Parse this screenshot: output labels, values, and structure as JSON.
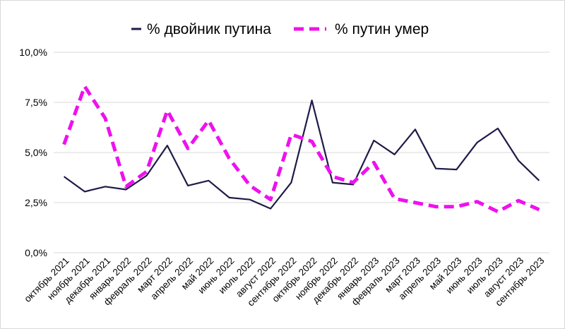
{
  "chart_data": {
    "type": "line",
    "title": "",
    "xlabel": "",
    "ylabel": "",
    "ylim": [
      0,
      10
    ],
    "y_ticks": [
      "0,0%",
      "2,5%",
      "5,0%",
      "7,5%",
      "10,0%"
    ],
    "y_tick_values": [
      0,
      2.5,
      5,
      7.5,
      10
    ],
    "grid": true,
    "legend_position": "top",
    "categories": [
      "октябрь 2021",
      "ноябрь 2021",
      "декабрь 2021",
      "январь 2022",
      "февраль 2022",
      "март 2022",
      "апрель 2022",
      "май 2022",
      "июнь 2022",
      "июль 2022",
      "август 2022",
      "сентябрь 2022",
      "октябрь 2022",
      "ноябрь 2022",
      "декабрь 2022",
      "январь 2023",
      "февраль 2023",
      "март 2023",
      "апрель 2023",
      "май 2023",
      "июнь 2023",
      "июль 2023",
      "август 2023",
      "сентябрь 2023"
    ],
    "series": [
      {
        "name": "% двойник путина",
        "color": "#1e1b48",
        "style": "solid",
        "values": [
          3.8,
          3.05,
          3.3,
          3.15,
          3.85,
          5.35,
          3.35,
          3.6,
          2.75,
          2.65,
          2.2,
          3.5,
          7.6,
          3.5,
          3.4,
          5.6,
          4.9,
          6.15,
          4.2,
          4.15,
          5.5,
          6.2,
          4.6,
          3.6
        ]
      },
      {
        "name": "% путин умер",
        "color": "#ee11ee",
        "style": "dashed",
        "values": [
          5.4,
          8.3,
          6.7,
          3.3,
          4.05,
          7.1,
          5.2,
          6.6,
          4.7,
          3.35,
          2.65,
          5.9,
          5.55,
          3.8,
          3.5,
          4.5,
          2.7,
          2.5,
          2.3,
          2.3,
          2.55,
          2.05,
          2.6,
          2.15
        ]
      }
    ]
  }
}
